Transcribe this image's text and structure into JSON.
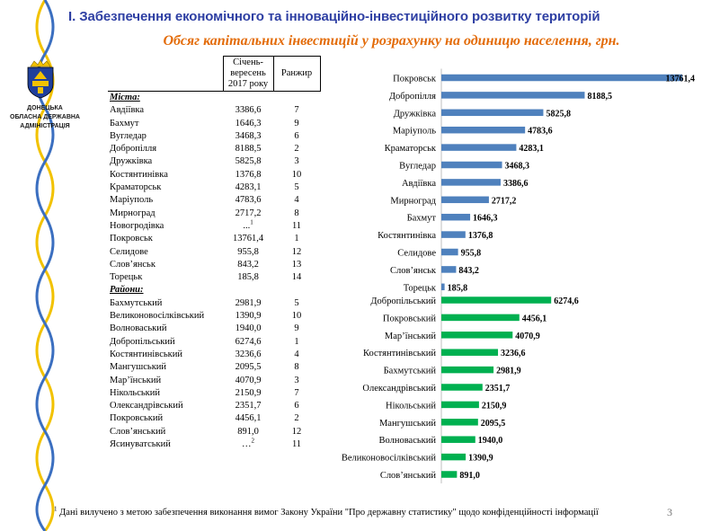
{
  "header": {
    "title": "І. Забезпечення економічного та інноваційно-інвестиційного розвитку територій",
    "subtitle": "Обсяг капітальних інвестицій у розрахунку на одиницю населення, грн."
  },
  "org": {
    "line1": "ДОНЕЦЬКА",
    "line2": "ОБЛАСНА ДЕРЖАВНА",
    "line3": "АДМІНІСТРАЦІЯ"
  },
  "colors": {
    "cities_bar": "#4f81bd",
    "districts_bar": "#00b050",
    "title": "#2e3fa3",
    "subtitle": "#e36c0a"
  },
  "table": {
    "col_period": "Січень-вересень 2017 року",
    "col_period_lines": [
      "Січень-",
      "вересень",
      "2017 року"
    ],
    "col_rank": "Ранжир",
    "cities_label": "Міста:",
    "districts_label": "Райони:",
    "cities": [
      {
        "name": "Авдіївка",
        "value": "3386,6",
        "rank": "7"
      },
      {
        "name": "Бахмут",
        "value": "1646,3",
        "rank": "9"
      },
      {
        "name": "Вугледар",
        "value": "3468,3",
        "rank": "6"
      },
      {
        "name": "Добропілля",
        "value": "8188,5",
        "rank": "2"
      },
      {
        "name": "Дружківка",
        "value": "5825,8",
        "rank": "3"
      },
      {
        "name": "Костянтинівка",
        "value": "1376,8",
        "rank": "10"
      },
      {
        "name": "Краматорськ",
        "value": "4283,1",
        "rank": "5"
      },
      {
        "name": "Маріуполь",
        "value": "4783,6",
        "rank": "4"
      },
      {
        "name": "Мирноград",
        "value": "2717,2",
        "rank": "8"
      },
      {
        "name": "Новогродівка",
        "value": "...",
        "note": "1",
        "rank": "11"
      },
      {
        "name": "Покровськ",
        "value": "13761,4",
        "rank": "1"
      },
      {
        "name": "Селидове",
        "value": "955,8",
        "rank": "12"
      },
      {
        "name": "Слов’янськ",
        "value": "843,2",
        "rank": "13"
      },
      {
        "name": "Торецьк",
        "value": "185,8",
        "rank": "14"
      }
    ],
    "districts": [
      {
        "name": "Бахмутський",
        "value": "2981,9",
        "rank": "5"
      },
      {
        "name": "Великоновосілківський",
        "value": "1390,9",
        "rank": "10"
      },
      {
        "name": "Волноваський",
        "value": "1940,0",
        "rank": "9"
      },
      {
        "name": "Добропільський",
        "value": "6274,6",
        "rank": "1"
      },
      {
        "name": "Костянтинівський",
        "value": "3236,6",
        "rank": "4"
      },
      {
        "name": "Мангушський",
        "value": "2095,5",
        "rank": "8"
      },
      {
        "name": "Мар’їнський",
        "value": "4070,9",
        "rank": "3"
      },
      {
        "name": "Нікольський",
        "value": "2150,9",
        "rank": "7"
      },
      {
        "name": "Олександрівський",
        "value": "2351,7",
        "rank": "6"
      },
      {
        "name": "Покровський",
        "value": "4456,1",
        "rank": "2"
      },
      {
        "name": "Слов’янський",
        "value": "891,0",
        "rank": "12"
      },
      {
        "name": "Ясинуватський",
        "value": "…",
        "note": "2",
        "rank": "11"
      }
    ]
  },
  "chart_data": {
    "type": "bar",
    "orientation": "horizontal",
    "title": "Обсяг капітальних інвестицій у розрахунку на одиницю населення, грн.",
    "series": [
      {
        "name": "Міста",
        "categories": [
          "Покровськ",
          "Добропілля",
          "Дружківка",
          "Маріуполь",
          "Краматорськ",
          "Вугледар",
          "Авдіївка",
          "Мирноград",
          "Бахмут",
          "Костянтинівка",
          "Селидове",
          "Слов’янськ",
          "Торецьк"
        ],
        "values": [
          13761.4,
          8188.5,
          5825.8,
          4783.6,
          4283.1,
          3468.3,
          3386.6,
          2717.2,
          1646.3,
          1376.8,
          955.8,
          843.2,
          185.8
        ],
        "labels": [
          "13761,4",
          "8188,5",
          "5825,8",
          "4783,6",
          "4283,1",
          "3468,3",
          "3386,6",
          "2717,2",
          "1646,3",
          "1376,8",
          "955,8",
          "843,2",
          "185,8"
        ]
      },
      {
        "name": "Райони",
        "categories": [
          "Добропільський",
          "Покровський",
          "Мар’їнський",
          "Костянтинівський",
          "Бахмутський",
          "Олександрівський",
          "Нікольський",
          "Мангушський",
          "Волноваський",
          "Великоновосілківський",
          "Слов’янський"
        ],
        "values": [
          6274.6,
          4456.1,
          4070.9,
          3236.6,
          2981.9,
          2351.7,
          2150.9,
          2095.5,
          1940.0,
          1390.9,
          891.0
        ],
        "labels": [
          "6274,6",
          "4456,1",
          "4070,9",
          "3236,6",
          "2981,9",
          "2351,7",
          "2150,9",
          "2095,5",
          "1940,0",
          "1390,9",
          "891,0"
        ]
      }
    ],
    "xlim": [
      0,
      13761.4
    ]
  },
  "footnote": {
    "mark": "1",
    "text": " Дані вилучено з метою забезпечення виконання вимог Закону України \"Про державну статистику\" щодо конфіденційності інформації"
  },
  "page_number": "3"
}
